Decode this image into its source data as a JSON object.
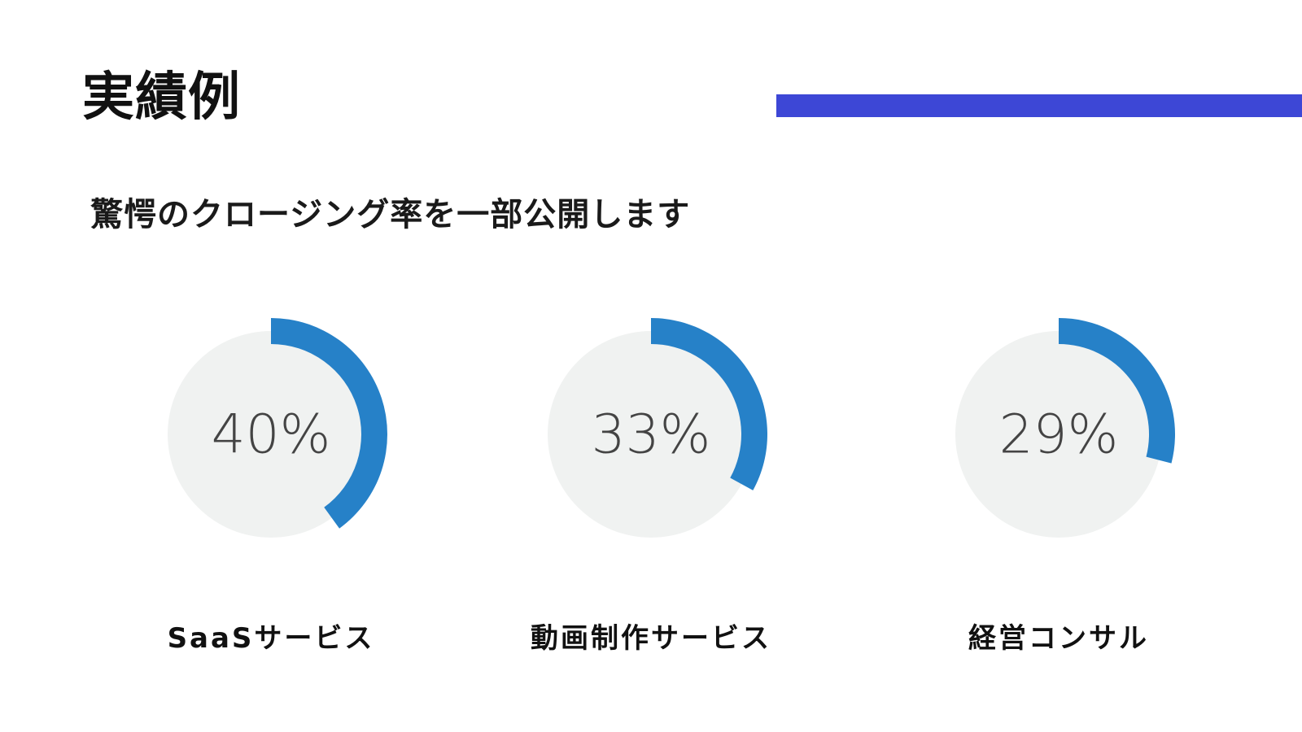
{
  "page": {
    "title": "実績例",
    "subtitle": "驚愕のクロージング率を一部公開します"
  },
  "colors": {
    "accent_bar": "#3d47d6",
    "arc": "#2681c8",
    "disc": "#f0f2f1",
    "value_text": "#444444"
  },
  "chart_data": {
    "type": "donut",
    "unit": "%",
    "max": 100,
    "items": [
      {
        "label": "SaaSサービス",
        "value": 40,
        "display": "40%"
      },
      {
        "label": "動画制作サービス",
        "value": 33,
        "display": "33%"
      },
      {
        "label": "経営コンサル",
        "value": 29,
        "display": "29%"
      }
    ]
  }
}
